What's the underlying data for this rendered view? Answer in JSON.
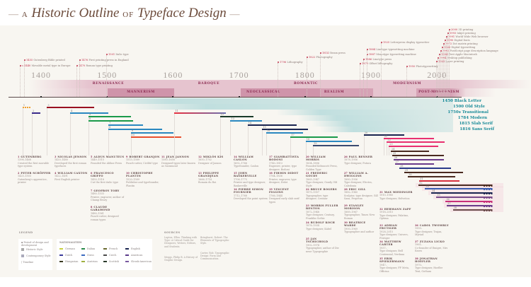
{
  "title": {
    "pre": "—",
    "a": "A",
    "main1": "Historic Outline",
    "of": "of",
    "main2": "Typeface Design",
    "post": "—"
  },
  "colors": {
    "accent": "#c0304a",
    "period": "#e6c4cf",
    "period_dark": "#cf8fa6",
    "teal": "#1a9aa8",
    "title": "#6b4a3a"
  },
  "timeline": {
    "ticks": [
      "1400",
      "1500",
      "1600",
      "1700",
      "1800",
      "1900",
      "2000"
    ]
  },
  "periods_upper": [
    {
      "label": "RENAISSANCE"
    },
    {
      "label": "BAROQUE"
    },
    {
      "label": "ROMANTIC"
    },
    {
      "label": "MODERNISM"
    }
  ],
  "periods_lower": [
    {
      "label": "MANNERISM"
    },
    {
      "label": "NEOCLASSICAL"
    },
    {
      "label": "REALISM"
    },
    {
      "label": "POST-MODERNISM"
    }
  ],
  "styles": [
    "1450 Black Letter",
    "1500 Old Style",
    "1750s Transitional",
    "1784 Modern",
    "1815 Slab Serif",
    "1816 Sans Serif"
  ],
  "events": [
    {
      "year": "c.1440",
      "text": "Movable metal type in Europe"
    },
    {
      "year": "1455",
      "text": "Gutenberg Bible printed"
    },
    {
      "year": "1501",
      "text": "Italic type"
    },
    {
      "year": "1470",
      "text": "Roman type printing"
    },
    {
      "year": "1476",
      "text": "First printing press in England"
    },
    {
      "year": "1796",
      "text": "Lithography"
    },
    {
      "year": "1822",
      "text": "Photography"
    },
    {
      "year": "1814",
      "text": "Steam press"
    },
    {
      "year": "1875",
      "text": "Offset lithography"
    },
    {
      "year": "1886",
      "text": "Linotype press"
    },
    {
      "year": "1887",
      "text": "Monotype typesetting machine"
    },
    {
      "year": "1884",
      "text": "Linotype typesetting machine"
    },
    {
      "year": "1925",
      "text": "Letterpress display typesetter"
    },
    {
      "year": "1950",
      "text": "Phototypesetting"
    },
    {
      "year": "1965",
      "text": "Laser printing"
    },
    {
      "year": "1984",
      "text": "Desktop publishing"
    },
    {
      "year": "1984",
      "text": "First Apple Macintosh"
    },
    {
      "year": "1982",
      "text": "PostScript page description language"
    },
    {
      "year": "1968",
      "text": "Digital typesetting"
    },
    {
      "year": "1972",
      "text": "Dot matrix printing"
    },
    {
      "year": "1990",
      "text": "Digital fonts"
    },
    {
      "year": "1991",
      "text": "World Wide Web browser"
    },
    {
      "year": "1993",
      "text": "Inkjet printing"
    },
    {
      "year": "2000",
      "text": "3D printing"
    }
  ],
  "bars": [
    {
      "start": 1372,
      "end": 1385,
      "color": "#f0a030"
    },
    {
      "start": 1386,
      "end": 1399,
      "color": "#3a2a8a"
    },
    {
      "start": 1409,
      "end": 1481,
      "color": "#9a1020"
    },
    {
      "start": 1444,
      "end": 1502,
      "color": "#2a88c0"
    },
    {
      "start": 1472,
      "end": 1536,
      "color": "#1a9a4a"
    },
    {
      "start": 1472,
      "end": 1539,
      "color": "#1a9a4a"
    },
    {
      "start": 1502,
      "end": 1555,
      "color": "#2a88c0"
    },
    {
      "start": 1502,
      "end": 1583,
      "color": "#2a88c0"
    },
    {
      "start": 1536,
      "end": 1601,
      "color": "#2a88c0"
    },
    {
      "start": 1536,
      "end": 1612,
      "color": "#e85030"
    },
    {
      "start": 1602,
      "end": 1680,
      "color": "#e83040"
    },
    {
      "start": 1671,
      "end": 1722,
      "color": "#1a3a2a"
    },
    {
      "start": 1687,
      "end": 1735,
      "color": "#2a88c0"
    },
    {
      "start": 1713,
      "end": 1787,
      "color": "#1a2550"
    },
    {
      "start": 1735,
      "end": 1804,
      "color": "#1a2550"
    },
    {
      "start": 1741,
      "end": 1797,
      "color": "#2a88c0"
    },
    {
      "start": 1778,
      "end": 1850,
      "color": "#1a9a4a"
    },
    {
      "start": 1801,
      "end": 1871,
      "color": "#2a88c0"
    },
    {
      "start": 1812,
      "end": 1882,
      "color": "#3a4a70"
    },
    {
      "start": 1889,
      "end": 1950,
      "color": "#1a2550"
    },
    {
      "start": 1919,
      "end": 1996,
      "color": "#e83070"
    },
    {
      "start": 1924,
      "end": 2012,
      "color": "#e83070"
    },
    {
      "start": 1927,
      "end": 2002,
      "color": "#e83070"
    },
    {
      "start": 1930,
      "end": 1988,
      "color": "#4a2a20"
    },
    {
      "start": 1932,
      "end": 2010,
      "color": "#4a2a20"
    },
    {
      "start": 1934,
      "end": 2010,
      "color": "#6a3a8a"
    },
    {
      "start": 1936,
      "end": 1995,
      "color": "#6a3a8a"
    },
    {
      "start": 1943,
      "end": 2021,
      "color": "#2a3a8a"
    },
    {
      "start": 1950,
      "end": 2039,
      "color": "#4a2a20"
    },
    {
      "start": 1956,
      "end": 2028,
      "color": "#4a2a20"
    },
    {
      "start": 1973,
      "end": 2034,
      "color": "#d83040"
    },
    {
      "start": 1972,
      "end": null,
      "color": "#4a2a20"
    },
    {
      "start": 1982,
      "end": null,
      "color": "#3a5ab0"
    },
    {
      "start": 1991,
      "end": null,
      "color": "#1a2550"
    },
    {
      "start": 1999,
      "end": null,
      "color": "#7a4a8a"
    },
    {
      "start": 2013,
      "end": null,
      "color": "#c8307a"
    },
    {
      "start": 2015,
      "end": null,
      "color": "#6a3a8a"
    },
    {
      "start": 2024,
      "end": null,
      "color": "#6a4a4a"
    }
  ],
  "designers": [
    {
      "num": "1",
      "name": "GUTENBERG",
      "years": "1398–1468",
      "desc": "Created the first movable type system"
    },
    {
      "num": "2",
      "name": "PETER SCHÖFFER",
      "years": "1425–1503",
      "desc": "Gutenberg's apprentice, printer"
    },
    {
      "num": "3",
      "name": "NICOLAS JENSON",
      "years": "1420–1480",
      "desc": "Developed the first roman typefaces"
    },
    {
      "num": "4",
      "name": "WILLIAM CAXTON",
      "years": "1422–1491",
      "desc": "First English printer"
    },
    {
      "num": "5",
      "name": "ALDUS MANUTIUS",
      "years": "1449–1515",
      "desc": "Founded the Aldine Press"
    },
    {
      "num": "6",
      "name": "FRANCESCO GRIFFO",
      "years": "1450–1518",
      "desc": "Cut the first italic type"
    },
    {
      "num": "7",
      "name": "GEOFROY TORY",
      "years": "1480–1533",
      "desc": "Printer, engraver, author of Champ fleury"
    },
    {
      "num": "8",
      "name": "CLAUDE GARAMOND",
      "years": "1480–1561",
      "desc": "Punch-cutter, designed roman types"
    },
    {
      "num": "9",
      "name": "ROBERT GRANJON",
      "years": "1513–1589",
      "desc": "Punch-cutter, Civilité type"
    },
    {
      "num": "10",
      "name": "CHRISTOPHE PLANTIN",
      "years": "1520–1589",
      "desc": "Publisher and typefounder, Plantin"
    },
    {
      "num": "11",
      "name": "JEAN JANNON",
      "years": "1580–1658",
      "desc": "Designed types later known as Garamond"
    },
    {
      "num": "12",
      "name": "MIKLÓS KIS",
      "years": "1650–1702",
      "desc": "Designer of Janson"
    },
    {
      "num": "13",
      "name": "PHILIPPE GRANDJEAN",
      "years": "1666–1714",
      "desc": "Romain du Roi"
    },
    {
      "num": "14",
      "name": "WILLIAM CASLON",
      "years": "1692–1766",
      "desc": "Typefounder, Caslon"
    },
    {
      "num": "15",
      "name": "JOHN BASKERVILLE",
      "years": "1706–1775",
      "desc": "Printer and type designer, Baskerville"
    },
    {
      "num": "16",
      "name": "PIERRE SIMON FOURNIER",
      "years": "1712–1768",
      "desc": "Developed the point system"
    },
    {
      "num": "17",
      "name": "GIAMBATTISTA BODONI",
      "years": "1740–1813",
      "desc": "Engraver, printer, type designer, Bodoni"
    },
    {
      "num": "18",
      "name": "FIRMIN DIDOT",
      "years": "1764–1836",
      "desc": "Printer, engraver, type designer, Didot"
    },
    {
      "num": "19",
      "name": "VINCENT FIGGINS",
      "years": "1766–1844",
      "desc": "Designed early slab serif types"
    },
    {
      "num": "20",
      "name": "WILLIAM MORRIS",
      "years": "1834–1896",
      "desc": "Founded Kelmscott Press, Golden Type"
    },
    {
      "num": "21",
      "name": "FREDERIC GOUDY",
      "years": "1865–1947",
      "desc": "Type designer, Goudy Old Style"
    },
    {
      "num": "22",
      "name": "BRUCE ROGERS",
      "years": "1870–1957",
      "desc": "Typographer, type designer, Centaur"
    },
    {
      "num": "23",
      "name": "MORRIS FULLER BENTON",
      "years": "1872–1948",
      "desc": "Type designer, Century, Franklin Gothic"
    },
    {
      "num": "24",
      "name": "RUDOLF KOCH",
      "years": "1876–1934",
      "desc": "Type designer, Kabel"
    },
    {
      "num": "25",
      "name": "JAN TSCHICHOLD",
      "years": "1902–1974",
      "desc": "Typographer, author of Die neue Typographie"
    },
    {
      "num": "26",
      "name": "PAUL RENNER",
      "years": "1878–1956",
      "desc": "Type designer, Futura"
    },
    {
      "num": "27",
      "name": "WILLIAM A. DWIGGINS",
      "years": "1880–1956",
      "desc": "Type designer, Electra, Caledonia"
    },
    {
      "num": "28",
      "name": "ERIC GILL",
      "years": "1882–1940",
      "desc": "Sculptor, type designer, Gill Sans, Perpetua"
    },
    {
      "num": "29",
      "name": "STANLEY MORISON",
      "years": "1889–1967",
      "desc": "Typographer, Times New Roman"
    },
    {
      "num": "30",
      "name": "BEATRICE WARDE",
      "years": "1900–1969",
      "desc": "Typographer and author"
    },
    {
      "num": "31",
      "name": "MAX MIEDINGER",
      "years": "1910–1980",
      "desc": "Type designer, Helvetica"
    },
    {
      "num": "32",
      "name": "HERMANN ZAPF",
      "years": "1918–2015",
      "desc": "Type designer, Palatino, Optima"
    },
    {
      "num": "33",
      "name": "ADRIAN FRUTIGER",
      "years": "1928–2015",
      "desc": "Type designer, Univers, Frutiger"
    },
    {
      "num": "34",
      "name": "MATTHEW CARTER",
      "years": "1937–",
      "desc": "Type designer, Bell Centennial, Verdana"
    },
    {
      "num": "35",
      "name": "ERIK SPIEKERMANN",
      "years": "1947–",
      "desc": "Type designer, FF Meta, Officina"
    },
    {
      "num": "36",
      "name": "CAROL TWOMBLY",
      "years": "1959–",
      "desc": "Type designer, Trajan, Myriad"
    },
    {
      "num": "37",
      "name": "ZUZANA LICKO",
      "years": "1961–",
      "desc": "Co-founder of Emigre, Mrs Eaves"
    },
    {
      "num": "38",
      "name": "JONATHAN HOEFLER",
      "years": "1970–",
      "desc": "Type designer, Hoefler Text, Gotham"
    }
  ],
  "legend": {
    "title": "LEGEND",
    "items": [
      "Period of design and development",
      "Historic Style",
      "Contemporary Style",
      "Timeline"
    ],
    "nat_title": "NATIONALITIES",
    "nationalities": [
      {
        "label": "German",
        "color": "#c8d040"
      },
      {
        "label": "Italian",
        "color": "#2a8a4a"
      },
      {
        "label": "French",
        "color": "#6a6a30"
      },
      {
        "label": "English",
        "color": "#1a2550"
      },
      {
        "label": "Dutch",
        "color": "#3a3a9a"
      },
      {
        "label": "Swiss",
        "color": "#3a6ac0"
      },
      {
        "label": "Czech",
        "color": "#4a4a4a"
      },
      {
        "label": "American",
        "color": "#5a3a8a"
      },
      {
        "label": "Hungarian",
        "color": "#3a3a20"
      },
      {
        "label": "Austrian",
        "color": "#a0b040"
      },
      {
        "label": "Scottish",
        "color": "#2a3a2a"
      },
      {
        "label": "Slovak-American",
        "color": "#7a5aa0"
      }
    ]
  },
  "sources": {
    "title": "SOURCES",
    "paras": [
      "Lupton, Ellen. Thinking with Type: A Critical Guide for Designers, Writers, Editors, and Students.",
      "Meggs, Philip B. A History of Graphic Design.",
      "Bringhurst, Robert. The Elements of Typographic Style.",
      "Carter, Rob. Typographic Design: Form and Communication."
    ]
  }
}
